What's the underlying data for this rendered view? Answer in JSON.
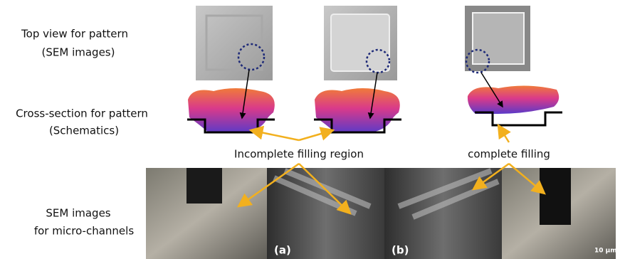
{
  "labels": {
    "top_view": [
      "Top view for pattern",
      "(SEM images)"
    ],
    "cross_section": [
      "Cross-section for pattern",
      "(Schematics)"
    ],
    "micro_channels": [
      "SEM images",
      "for micro-channels"
    ]
  },
  "annotations": {
    "incomplete": "Incomplete filling region",
    "complete": "complete filling"
  },
  "panels": {
    "a": "(a)",
    "b": "(b)",
    "scale": "10 μm"
  }
}
